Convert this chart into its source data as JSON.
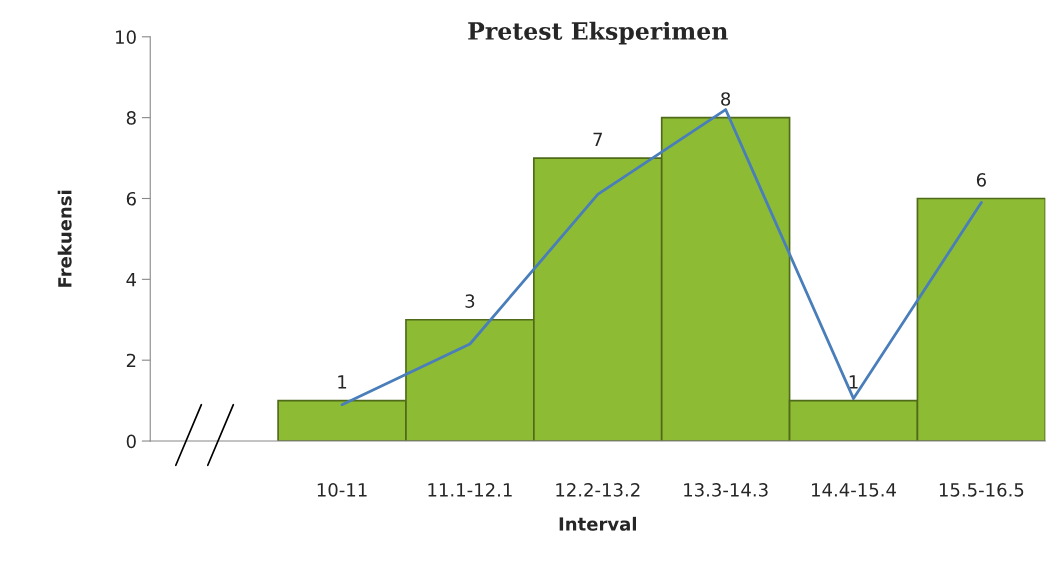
{
  "chart_data": {
    "type": "bar",
    "title": "Pretest Eksperimen",
    "xlabel": "Interval",
    "ylabel": "Frekuensi",
    "categories": [
      null,
      "10-11",
      "11.1-12.1",
      "12.2-13.2",
      "13.3-14.3",
      "14.4-15.4",
      "15.5-16.5"
    ],
    "series": [
      {
        "color": "#8dbb33",
        "values": [
          null,
          1,
          3,
          7,
          8,
          1,
          6
        ],
        "value_labels": [
          null,
          "1",
          "3",
          "7",
          "8",
          "1",
          "6"
        ]
      },
      {
        "type": "line",
        "color": "#4a7ebb",
        "values": [
          null,
          0.9,
          2.4,
          6.1,
          8.2,
          1.05,
          5.9
        ]
      }
    ],
    "ylim": [
      0,
      10
    ],
    "yticks": [
      0,
      2,
      4,
      6,
      8,
      10
    ],
    "grid": false,
    "legend": false
  }
}
